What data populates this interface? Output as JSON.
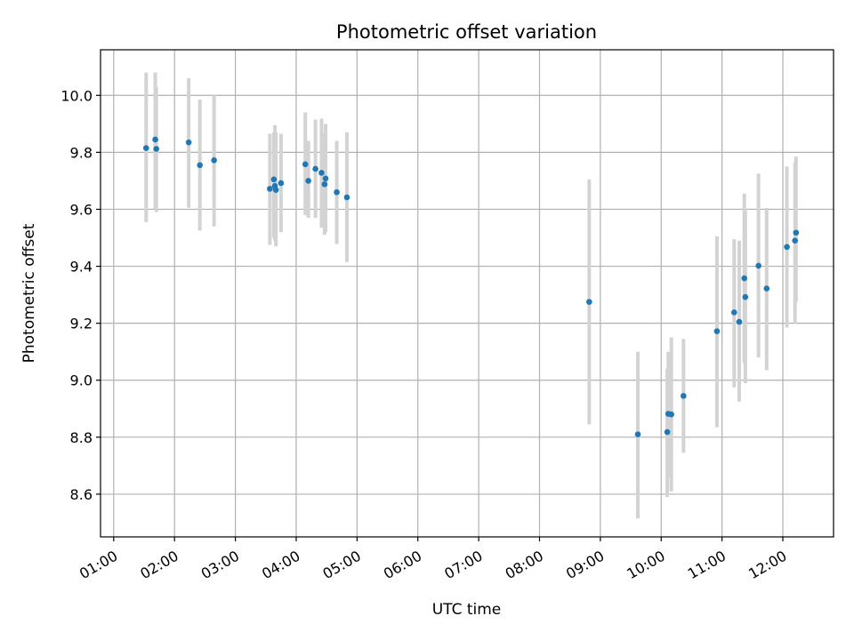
{
  "chart_data": {
    "type": "scatter",
    "title": "Photometric offset variation",
    "xlabel": "UTC time",
    "ylabel": "Photometric offset",
    "xlim": [
      "00:47",
      "12:50"
    ],
    "ylim": [
      8.45,
      10.16
    ],
    "grid": true,
    "xticks": [
      "01:00",
      "02:00",
      "03:00",
      "04:00",
      "05:00",
      "06:00",
      "07:00",
      "08:00",
      "09:00",
      "10:00",
      "11:00",
      "12:00"
    ],
    "yticks": [
      8.6,
      8.8,
      9.0,
      9.2,
      9.4,
      9.6,
      9.8,
      10.0
    ],
    "errorbar_color": "#d3d3d3",
    "marker_color": "#1f77b4",
    "points": [
      {
        "x": "01:32",
        "y": 9.815,
        "low": 9.555,
        "high": 10.08
      },
      {
        "x": "01:41",
        "y": 9.845,
        "low": 9.6,
        "high": 10.08
      },
      {
        "x": "01:42",
        "y": 9.812,
        "low": 9.59,
        "high": 10.03
      },
      {
        "x": "02:14",
        "y": 9.835,
        "low": 9.605,
        "high": 10.06
      },
      {
        "x": "02:25",
        "y": 9.755,
        "low": 9.525,
        "high": 9.985
      },
      {
        "x": "02:39",
        "y": 9.772,
        "low": 9.54,
        "high": 10.0
      },
      {
        "x": "03:34",
        "y": 9.672,
        "low": 9.475,
        "high": 9.865
      },
      {
        "x": "03:38",
        "y": 9.705,
        "low": 9.5,
        "high": 9.87
      },
      {
        "x": "03:39",
        "y": 9.682,
        "low": 9.49,
        "high": 9.895
      },
      {
        "x": "03:40",
        "y": 9.668,
        "low": 9.47,
        "high": 9.87
      },
      {
        "x": "03:45",
        "y": 9.692,
        "low": 9.52,
        "high": 9.865
      },
      {
        "x": "04:09",
        "y": 9.758,
        "low": 9.58,
        "high": 9.94
      },
      {
        "x": "04:12",
        "y": 9.7,
        "low": 9.57,
        "high": 9.84
      },
      {
        "x": "04:19",
        "y": 9.742,
        "low": 9.57,
        "high": 9.915
      },
      {
        "x": "04:25",
        "y": 9.728,
        "low": 9.535,
        "high": 9.918
      },
      {
        "x": "04:28",
        "y": 9.688,
        "low": 9.51,
        "high": 9.87
      },
      {
        "x": "04:29",
        "y": 9.708,
        "low": 9.52,
        "high": 9.9
      },
      {
        "x": "04:40",
        "y": 9.66,
        "low": 9.478,
        "high": 9.84
      },
      {
        "x": "04:50",
        "y": 9.642,
        "low": 9.415,
        "high": 9.87
      },
      {
        "x": "08:49",
        "y": 9.275,
        "low": 8.845,
        "high": 9.705
      },
      {
        "x": "09:37",
        "y": 8.81,
        "low": 8.515,
        "high": 9.1
      },
      {
        "x": "10:06",
        "y": 8.818,
        "low": 8.59,
        "high": 9.04
      },
      {
        "x": "10:07",
        "y": 8.882,
        "low": 8.66,
        "high": 9.1
      },
      {
        "x": "10:10",
        "y": 8.88,
        "low": 8.61,
        "high": 9.15
      },
      {
        "x": "10:22",
        "y": 8.945,
        "low": 8.745,
        "high": 9.145
      },
      {
        "x": "10:55",
        "y": 9.172,
        "low": 8.835,
        "high": 9.505
      },
      {
        "x": "11:12",
        "y": 9.238,
        "low": 8.975,
        "high": 9.495
      },
      {
        "x": "11:17",
        "y": 9.205,
        "low": 8.925,
        "high": 9.49
      },
      {
        "x": "11:22",
        "y": 9.358,
        "low": 9.06,
        "high": 9.655
      },
      {
        "x": "11:23",
        "y": 9.292,
        "low": 8.99,
        "high": 9.595
      },
      {
        "x": "11:36",
        "y": 9.402,
        "low": 9.08,
        "high": 9.725
      },
      {
        "x": "11:44",
        "y": 9.322,
        "low": 9.035,
        "high": 9.605
      },
      {
        "x": "12:04",
        "y": 9.468,
        "low": 9.185,
        "high": 9.75
      },
      {
        "x": "12:12",
        "y": 9.49,
        "low": 9.2,
        "high": 9.765
      },
      {
        "x": "12:13",
        "y": 9.518,
        "low": 9.275,
        "high": 9.785
      }
    ]
  }
}
